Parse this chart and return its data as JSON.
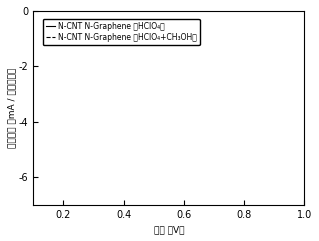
{
  "xlim": [
    0.1,
    1.0
  ],
  "ylim": [
    -7,
    0
  ],
  "xticks": [
    0.2,
    0.4,
    0.6,
    0.8,
    1.0
  ],
  "yticks": [
    0,
    -2,
    -4,
    -6
  ],
  "xlabel": "电势 （V）",
  "ylabel": "电流密度 （mA / 平方厘米）",
  "legend_line1": "N-CNT N-Graphene ：HClO₄）",
  "legend_line2": "N-CNT N-Graphene ：HClO₄+CH₃OH）",
  "background_color": "#ffffff",
  "tick_fontsize": 7,
  "label_fontsize": 6.5,
  "legend_fontsize": 5.5
}
